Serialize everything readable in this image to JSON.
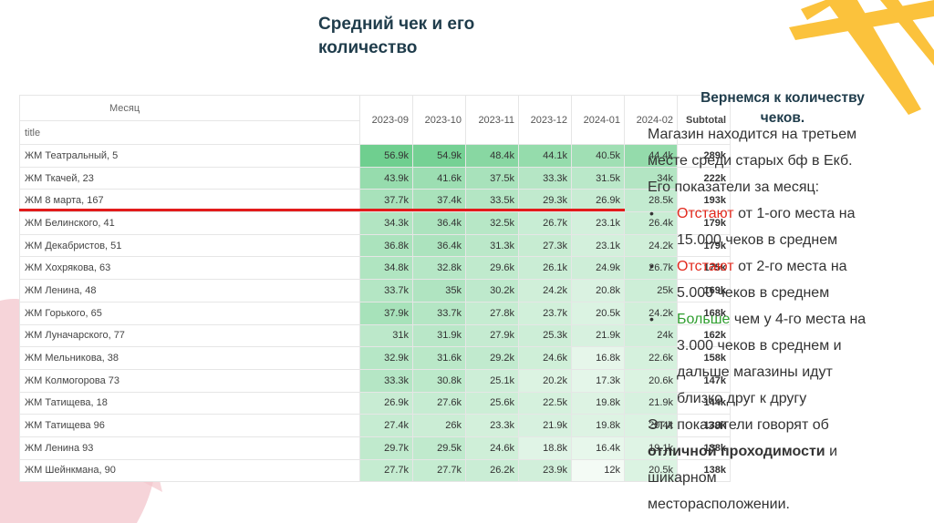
{
  "slide": {
    "title_line1": "Средний чек и его",
    "title_line2": "количество",
    "right_heading_line1": "Вернемся к количеству",
    "right_heading_line2": "чеков."
  },
  "table": {
    "header": {
      "month_label": "Месяц",
      "row_label": "title",
      "months": [
        "2023-09",
        "2023-10",
        "2023-11",
        "2023-12",
        "2024-01",
        "2024-02"
      ],
      "subtotal": "Subtotal"
    },
    "rows": [
      {
        "title": "ЖМ Театральный, 5",
        "values": [
          "56.9k",
          "54.9k",
          "48.4k",
          "44.1k",
          "40.5k",
          "44.4k"
        ],
        "total": "289k"
      },
      {
        "title": "ЖМ Ткачей, 23",
        "values": [
          "43.9k",
          "41.6k",
          "37.5k",
          "33.3k",
          "31.5k",
          "34k"
        ],
        "total": "222k"
      },
      {
        "title": "ЖМ 8 марта, 167",
        "values": [
          "37.7k",
          "37.4k",
          "33.5k",
          "29.3k",
          "26.9k",
          "28.5k"
        ],
        "total": "193k"
      },
      {
        "title": "ЖМ Белинского, 41",
        "values": [
          "34.3k",
          "36.4k",
          "32.5k",
          "26.7k",
          "23.1k",
          "26.4k"
        ],
        "total": "179k"
      },
      {
        "title": "ЖМ Декабристов, 51",
        "values": [
          "36.8k",
          "36.4k",
          "31.3k",
          "27.3k",
          "23.1k",
          "24.2k"
        ],
        "total": "179k"
      },
      {
        "title": "ЖМ Хохрякова, 63",
        "values": [
          "34.8k",
          "32.8k",
          "29.6k",
          "26.1k",
          "24.9k",
          "26.7k"
        ],
        "total": "175k"
      },
      {
        "title": "ЖМ Ленина, 48",
        "values": [
          "33.7k",
          "35k",
          "30.2k",
          "24.2k",
          "20.8k",
          "25k"
        ],
        "total": "169k"
      },
      {
        "title": "ЖМ Горького, 65",
        "values": [
          "37.9k",
          "33.7k",
          "27.8k",
          "23.7k",
          "20.5k",
          "24.2k"
        ],
        "total": "168k"
      },
      {
        "title": "ЖМ Луначарского, 77",
        "values": [
          "31k",
          "31.9k",
          "27.9k",
          "25.3k",
          "21.9k",
          "24k"
        ],
        "total": "162k"
      },
      {
        "title": "ЖМ Мельникова, 38",
        "values": [
          "32.9k",
          "31.6k",
          "29.2k",
          "24.6k",
          "16.8k",
          "22.6k"
        ],
        "total": "158k"
      },
      {
        "title": "ЖМ Колмогорова 73",
        "values": [
          "33.3k",
          "30.8k",
          "25.1k",
          "20.2k",
          "17.3k",
          "20.6k"
        ],
        "total": "147k"
      },
      {
        "title": "ЖМ Татищева, 18",
        "values": [
          "26.9k",
          "27.6k",
          "25.6k",
          "22.5k",
          "19.8k",
          "21.9k"
        ],
        "total": "144k"
      },
      {
        "title": "ЖМ Татищева 96",
        "values": [
          "27.4k",
          "26k",
          "23.3k",
          "21.9k",
          "19.8k",
          "20.4k"
        ],
        "total": "139k"
      },
      {
        "title": "ЖМ Ленина 93",
        "values": [
          "29.7k",
          "29.5k",
          "24.6k",
          "18.8k",
          "16.4k",
          "19.1k"
        ],
        "total": "138k"
      },
      {
        "title": "ЖМ Шейнкмана, 90",
        "values": [
          "27.7k",
          "27.7k",
          "26.2k",
          "23.9k",
          "12k",
          "20.5k"
        ],
        "total": "138k"
      }
    ]
  },
  "notes": {
    "intro_line1": "Магазин находится на третьем",
    "intro_line2": "месте среди старых бф в Екб.",
    "intro_line3": "Его показатели за месяц:",
    "bullet_char": "•",
    "b1_word": "Отстают",
    "b1_rest": " от 1-ого места на",
    "b1_line2": "15.000 чеков в среднем",
    "b2_word": "Отстают",
    "b2_rest": " от 2-го места на",
    "b2_line2": "5.000 чеков в среднем",
    "b3_word": "Больше",
    "b3_rest": " чем у 4-го места на",
    "b3_line2": "3.000 чеков в среднем и",
    "b3_line3": "дальше магазины идут",
    "b3_line4": "близко друг к другу",
    "outro_line1": "Эти показатели говорят об",
    "outro_bold": "отличной проходимости",
    "outro_after_bold": " и",
    "outro_line3": "шикарном",
    "outro_line4": "месторасположении."
  },
  "colors": {
    "heat_high": "#6fcf8f",
    "heat_low": "#f4fbf5",
    "red_line": "#e21b1b",
    "highlight_red": "#e22a1e",
    "highlight_green": "#2f9e2f",
    "deco_yellow": "#fbc23c",
    "deco_pink": "#f3c6cc"
  }
}
